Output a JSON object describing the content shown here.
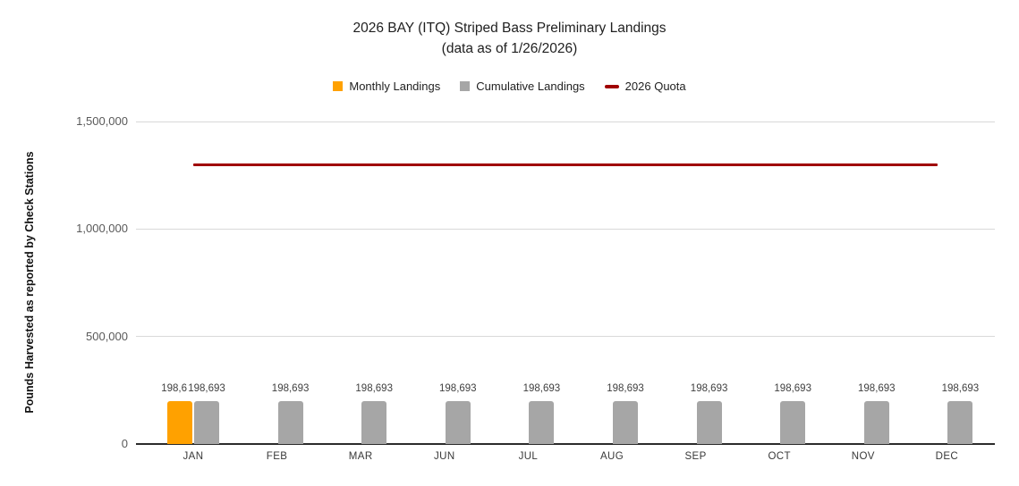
{
  "chart": {
    "title": {
      "line1": "2026 BAY (ITQ) Striped Bass Preliminary Landings",
      "line2": "(data as of 1/26/2026)"
    },
    "legend": {
      "items": [
        {
          "label": "Monthly Landings",
          "marker": "square",
          "color": "#FFA100"
        },
        {
          "label": "Cumulative Landings",
          "marker": "square",
          "color": "#A6A6A6"
        },
        {
          "label": "2026 Quota",
          "marker": "dash",
          "color": "#A00000"
        }
      ]
    },
    "y_axis": {
      "title": "Pounds Harvested as reported by Check Stations",
      "tick_labels": [
        "1,500,000",
        "1,000,000",
        "500,000",
        "0"
      ],
      "tick_values": [
        1500000,
        1000000,
        500000,
        0
      ]
    }
  },
  "chart_data": {
    "type": "bar",
    "title": "2026 BAY (ITQ) Striped Bass Preliminary Landings",
    "subtitle": "(data as of 1/26/2026)",
    "ylabel": "Pounds Harvested as reported by Check Stations",
    "ylim": [
      0,
      1500000
    ],
    "grid": true,
    "legend_position": "top",
    "categories": [
      "JAN",
      "FEB",
      "MAR",
      "JUN",
      "JUL",
      "AUG",
      "SEP",
      "OCT",
      "NOV",
      "DEC"
    ],
    "series": [
      {
        "name": "Monthly Landings",
        "type": "bar",
        "color": "#FFA100",
        "values": [
          198693,
          null,
          null,
          null,
          null,
          null,
          null,
          null,
          null,
          null
        ],
        "data_labels": [
          "198,693",
          "",
          "",
          "",
          "",
          "",
          "",
          "",
          "",
          ""
        ]
      },
      {
        "name": "Cumulative Landings",
        "type": "bar",
        "color": "#A6A6A6",
        "values": [
          198693,
          198693,
          198693,
          198693,
          198693,
          198693,
          198693,
          198693,
          198693,
          198693
        ],
        "data_labels": [
          "198,693",
          "198,693",
          "198,693",
          "198,693",
          "198,693",
          "198,693",
          "198,693",
          "198,693",
          "198,693",
          "198,693"
        ]
      },
      {
        "name": "2026 Quota",
        "type": "line",
        "color": "#A00000",
        "value": 1300000,
        "x_span": [
          "JAN",
          "DEC"
        ]
      }
    ]
  }
}
